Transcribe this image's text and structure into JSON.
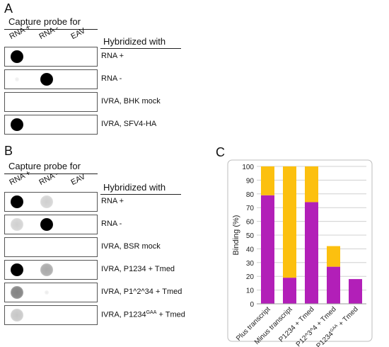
{
  "panelA": {
    "letter": "A",
    "capture_title": "Capture probe for",
    "columns": [
      "RNA +",
      "RNA -",
      "EAV"
    ],
    "hyb_title": "Hybridized with",
    "rows": [
      {
        "label": "RNA +",
        "dots": [
          1.0,
          0.0,
          0.0
        ]
      },
      {
        "label": "RNA -",
        "dots": [
          0.05,
          1.0,
          0.0
        ]
      },
      {
        "label": "IVRA, BHK mock",
        "dots": [
          0.0,
          0.0,
          0.0
        ]
      },
      {
        "label": "IVRA, SFV4-HA",
        "dots": [
          1.0,
          0.0,
          0.0
        ]
      }
    ]
  },
  "panelB": {
    "letter": "B",
    "capture_title": "Capture probe for",
    "columns": [
      "RNA +",
      "RNA -",
      "EAV"
    ],
    "hyb_title": "Hybridized with",
    "rows": [
      {
        "label": "RNA +",
        "dots": [
          1.0,
          0.2,
          0.0
        ]
      },
      {
        "label": "RNA -",
        "dots": [
          0.2,
          1.0,
          0.0
        ]
      },
      {
        "label": "IVRA, BSR mock",
        "dots": [
          0.0,
          0.0,
          0.0
        ]
      },
      {
        "label": "IVRA, P1234 + Tmed",
        "dots": [
          1.0,
          0.4,
          0.0
        ]
      },
      {
        "label": "IVRA, P1^2^34 + Tmed",
        "dots": [
          0.6,
          0.06,
          0.0
        ]
      },
      {
        "label_main": "IVRA, P1234",
        "label_sup": "GAA",
        "label_tail": " + Tmed",
        "dots": [
          0.25,
          0.0,
          0.0
        ]
      }
    ]
  },
  "panelC": {
    "letter": "C",
    "colors": {
      "lower": "#b21fb8",
      "upper": "#fcc00f",
      "grid": "#d0d0d0"
    },
    "chart_data": {
      "type": "bar",
      "stacked": true,
      "ylabel": "Binding (%)",
      "ylim": [
        0,
        100
      ],
      "yticks": [
        0,
        10,
        20,
        30,
        40,
        50,
        60,
        70,
        80,
        90,
        100
      ],
      "grid": true,
      "categories": [
        {
          "main": "Plus transcript",
          "sup": ""
        },
        {
          "main": "Minus transcript",
          "sup": ""
        },
        {
          "main": "P1234 + Tmed",
          "sup": ""
        },
        {
          "main": "P12^3^4 + Tmed",
          "sup": ""
        },
        {
          "main": "P1234",
          "sup": "GAA",
          "tail": " + Tmed"
        }
      ],
      "series": [
        {
          "values": [
            79,
            19,
            74,
            27,
            18
          ]
        },
        {
          "values": [
            21,
            81,
            26,
            15,
            0
          ]
        }
      ]
    }
  }
}
